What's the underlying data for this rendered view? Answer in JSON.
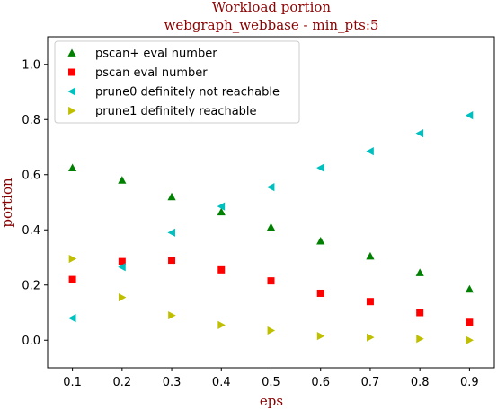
{
  "chart_data": {
    "type": "scatter",
    "title": "Workload portion",
    "subtitle": "webgraph_webbase - min_pts:5",
    "xlabel": "eps",
    "ylabel": "portion",
    "xlim": [
      0.05,
      0.95
    ],
    "ylim": [
      -0.1,
      1.1
    ],
    "x_ticks": [
      "0.1",
      "0.2",
      "0.3",
      "0.4",
      "0.5",
      "0.6",
      "0.7",
      "0.8",
      "0.9"
    ],
    "y_ticks": [
      "0.0",
      "0.2",
      "0.4",
      "0.6",
      "0.8",
      "1.0"
    ],
    "grid": false,
    "legend_position": "top-left",
    "x": [
      0.1,
      0.2,
      0.3,
      0.4,
      0.5,
      0.6,
      0.7,
      0.8,
      0.9
    ],
    "series": [
      {
        "name": "pscan+ eval number",
        "marker": "triangle-up",
        "color": "#008000",
        "values": [
          0.625,
          0.58,
          0.52,
          0.465,
          0.41,
          0.36,
          0.305,
          0.245,
          0.185
        ]
      },
      {
        "name": "pscan eval number",
        "marker": "square",
        "color": "#ff0000",
        "values": [
          0.22,
          0.285,
          0.29,
          0.255,
          0.215,
          0.17,
          0.14,
          0.1,
          0.065
        ]
      },
      {
        "name": "prune0 definitely not reachable",
        "marker": "triangle-left",
        "color": "#00bfbf",
        "values": [
          0.08,
          0.265,
          0.39,
          0.485,
          0.555,
          0.625,
          0.685,
          0.75,
          0.815
        ]
      },
      {
        "name": "prune1 definitely reachable",
        "marker": "triangle-right",
        "color": "#bfbf00",
        "values": [
          0.295,
          0.155,
          0.09,
          0.055,
          0.035,
          0.015,
          0.01,
          0.005,
          0.0
        ]
      }
    ]
  }
}
